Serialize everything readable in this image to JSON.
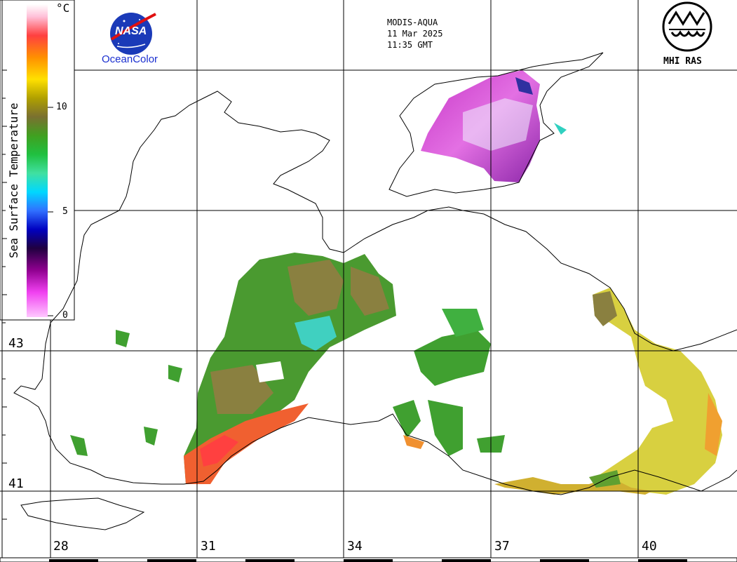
{
  "header": {
    "sensor": "MODIS-AQUA",
    "date": "11 Mar 2025",
    "time": "11:35 GMT",
    "agency": "MHI RAS",
    "logo_left_text": "NASA",
    "logo_left_caption": "OceanColor"
  },
  "colorbar": {
    "title": "Sea Surface Temperature",
    "unit": "°C",
    "ticks": [
      "10",
      "5",
      "0"
    ],
    "colors": [
      "#ffffff",
      "#ff9fc8",
      "#ff4a4a",
      "#ff8a00",
      "#ffd400",
      "#f0f000",
      "#a0a000",
      "#807030",
      "#4a9a20",
      "#20c020",
      "#40e070",
      "#30e0c0",
      "#00d0ff",
      "#3a80ff",
      "#0000d0",
      "#101060",
      "#600060",
      "#b000b0",
      "#f040f0",
      "#ffb0ff"
    ]
  },
  "map": {
    "latitude_labels": [
      "43",
      "41"
    ],
    "longitude_labels": [
      "28",
      "31",
      "34",
      "37",
      "40"
    ],
    "grid_color": "#000000",
    "coast_color": "#000000"
  }
}
